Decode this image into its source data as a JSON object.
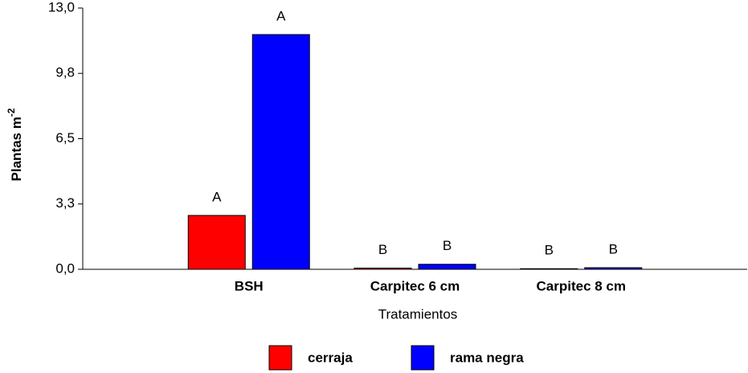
{
  "chart_data": {
    "type": "bar",
    "xlabel": "Tratamientos",
    "ylabel": {
      "text": "Plantas m",
      "superscript": "-2"
    },
    "categories": [
      "BSH",
      "Carpitec 6 cm",
      "Carpitec 8 cm"
    ],
    "series": [
      {
        "name": "cerraja",
        "color": "#ff0000",
        "values": [
          2.68,
          0.06,
          0.03
        ],
        "annotations": [
          "A",
          "B",
          "B"
        ]
      },
      {
        "name": "rama negra",
        "color": "#0000ff",
        "values": [
          11.68,
          0.25,
          0.08
        ],
        "annotations": [
          "A",
          "B",
          "B"
        ]
      }
    ],
    "ylim": [
      0,
      13
    ],
    "yticks": [
      {
        "value": 0,
        "label": "0,0"
      },
      {
        "value": 3.25,
        "label": "3,3"
      },
      {
        "value": 6.5,
        "label": "6,5"
      },
      {
        "value": 9.75,
        "label": "9,8"
      },
      {
        "value": 13,
        "label": "13,0"
      }
    ],
    "grid": false
  }
}
